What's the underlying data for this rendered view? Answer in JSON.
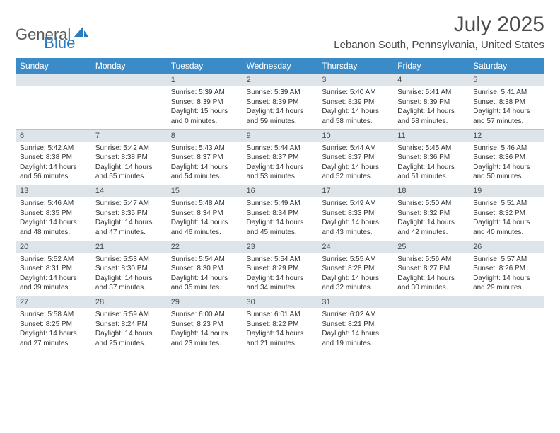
{
  "brand": {
    "general": "General",
    "blue": "Blue",
    "logo_color": "#2b7bbf",
    "text_gray": "#5a5a5a"
  },
  "header": {
    "month_title": "July 2025",
    "location": "Lebanon South, Pennsylvania, United States"
  },
  "colors": {
    "header_bg": "#3b8bc9",
    "daynum_bg": "#dde4ea",
    "daynum_border": "#b8c2cc",
    "text": "#333333"
  },
  "day_labels": [
    "Sunday",
    "Monday",
    "Tuesday",
    "Wednesday",
    "Thursday",
    "Friday",
    "Saturday"
  ],
  "weeks": [
    {
      "nums": [
        "",
        "",
        "1",
        "2",
        "3",
        "4",
        "5"
      ],
      "cells": [
        null,
        null,
        {
          "sunrise": "Sunrise: 5:39 AM",
          "sunset": "Sunset: 8:39 PM",
          "day1": "Daylight: 15 hours",
          "day2": "and 0 minutes."
        },
        {
          "sunrise": "Sunrise: 5:39 AM",
          "sunset": "Sunset: 8:39 PM",
          "day1": "Daylight: 14 hours",
          "day2": "and 59 minutes."
        },
        {
          "sunrise": "Sunrise: 5:40 AM",
          "sunset": "Sunset: 8:39 PM",
          "day1": "Daylight: 14 hours",
          "day2": "and 58 minutes."
        },
        {
          "sunrise": "Sunrise: 5:41 AM",
          "sunset": "Sunset: 8:39 PM",
          "day1": "Daylight: 14 hours",
          "day2": "and 58 minutes."
        },
        {
          "sunrise": "Sunrise: 5:41 AM",
          "sunset": "Sunset: 8:38 PM",
          "day1": "Daylight: 14 hours",
          "day2": "and 57 minutes."
        }
      ]
    },
    {
      "nums": [
        "6",
        "7",
        "8",
        "9",
        "10",
        "11",
        "12"
      ],
      "cells": [
        {
          "sunrise": "Sunrise: 5:42 AM",
          "sunset": "Sunset: 8:38 PM",
          "day1": "Daylight: 14 hours",
          "day2": "and 56 minutes."
        },
        {
          "sunrise": "Sunrise: 5:42 AM",
          "sunset": "Sunset: 8:38 PM",
          "day1": "Daylight: 14 hours",
          "day2": "and 55 minutes."
        },
        {
          "sunrise": "Sunrise: 5:43 AM",
          "sunset": "Sunset: 8:37 PM",
          "day1": "Daylight: 14 hours",
          "day2": "and 54 minutes."
        },
        {
          "sunrise": "Sunrise: 5:44 AM",
          "sunset": "Sunset: 8:37 PM",
          "day1": "Daylight: 14 hours",
          "day2": "and 53 minutes."
        },
        {
          "sunrise": "Sunrise: 5:44 AM",
          "sunset": "Sunset: 8:37 PM",
          "day1": "Daylight: 14 hours",
          "day2": "and 52 minutes."
        },
        {
          "sunrise": "Sunrise: 5:45 AM",
          "sunset": "Sunset: 8:36 PM",
          "day1": "Daylight: 14 hours",
          "day2": "and 51 minutes."
        },
        {
          "sunrise": "Sunrise: 5:46 AM",
          "sunset": "Sunset: 8:36 PM",
          "day1": "Daylight: 14 hours",
          "day2": "and 50 minutes."
        }
      ]
    },
    {
      "nums": [
        "13",
        "14",
        "15",
        "16",
        "17",
        "18",
        "19"
      ],
      "cells": [
        {
          "sunrise": "Sunrise: 5:46 AM",
          "sunset": "Sunset: 8:35 PM",
          "day1": "Daylight: 14 hours",
          "day2": "and 48 minutes."
        },
        {
          "sunrise": "Sunrise: 5:47 AM",
          "sunset": "Sunset: 8:35 PM",
          "day1": "Daylight: 14 hours",
          "day2": "and 47 minutes."
        },
        {
          "sunrise": "Sunrise: 5:48 AM",
          "sunset": "Sunset: 8:34 PM",
          "day1": "Daylight: 14 hours",
          "day2": "and 46 minutes."
        },
        {
          "sunrise": "Sunrise: 5:49 AM",
          "sunset": "Sunset: 8:34 PM",
          "day1": "Daylight: 14 hours",
          "day2": "and 45 minutes."
        },
        {
          "sunrise": "Sunrise: 5:49 AM",
          "sunset": "Sunset: 8:33 PM",
          "day1": "Daylight: 14 hours",
          "day2": "and 43 minutes."
        },
        {
          "sunrise": "Sunrise: 5:50 AM",
          "sunset": "Sunset: 8:32 PM",
          "day1": "Daylight: 14 hours",
          "day2": "and 42 minutes."
        },
        {
          "sunrise": "Sunrise: 5:51 AM",
          "sunset": "Sunset: 8:32 PM",
          "day1": "Daylight: 14 hours",
          "day2": "and 40 minutes."
        }
      ]
    },
    {
      "nums": [
        "20",
        "21",
        "22",
        "23",
        "24",
        "25",
        "26"
      ],
      "cells": [
        {
          "sunrise": "Sunrise: 5:52 AM",
          "sunset": "Sunset: 8:31 PM",
          "day1": "Daylight: 14 hours",
          "day2": "and 39 minutes."
        },
        {
          "sunrise": "Sunrise: 5:53 AM",
          "sunset": "Sunset: 8:30 PM",
          "day1": "Daylight: 14 hours",
          "day2": "and 37 minutes."
        },
        {
          "sunrise": "Sunrise: 5:54 AM",
          "sunset": "Sunset: 8:30 PM",
          "day1": "Daylight: 14 hours",
          "day2": "and 35 minutes."
        },
        {
          "sunrise": "Sunrise: 5:54 AM",
          "sunset": "Sunset: 8:29 PM",
          "day1": "Daylight: 14 hours",
          "day2": "and 34 minutes."
        },
        {
          "sunrise": "Sunrise: 5:55 AM",
          "sunset": "Sunset: 8:28 PM",
          "day1": "Daylight: 14 hours",
          "day2": "and 32 minutes."
        },
        {
          "sunrise": "Sunrise: 5:56 AM",
          "sunset": "Sunset: 8:27 PM",
          "day1": "Daylight: 14 hours",
          "day2": "and 30 minutes."
        },
        {
          "sunrise": "Sunrise: 5:57 AM",
          "sunset": "Sunset: 8:26 PM",
          "day1": "Daylight: 14 hours",
          "day2": "and 29 minutes."
        }
      ]
    },
    {
      "nums": [
        "27",
        "28",
        "29",
        "30",
        "31",
        "",
        ""
      ],
      "cells": [
        {
          "sunrise": "Sunrise: 5:58 AM",
          "sunset": "Sunset: 8:25 PM",
          "day1": "Daylight: 14 hours",
          "day2": "and 27 minutes."
        },
        {
          "sunrise": "Sunrise: 5:59 AM",
          "sunset": "Sunset: 8:24 PM",
          "day1": "Daylight: 14 hours",
          "day2": "and 25 minutes."
        },
        {
          "sunrise": "Sunrise: 6:00 AM",
          "sunset": "Sunset: 8:23 PM",
          "day1": "Daylight: 14 hours",
          "day2": "and 23 minutes."
        },
        {
          "sunrise": "Sunrise: 6:01 AM",
          "sunset": "Sunset: 8:22 PM",
          "day1": "Daylight: 14 hours",
          "day2": "and 21 minutes."
        },
        {
          "sunrise": "Sunrise: 6:02 AM",
          "sunset": "Sunset: 8:21 PM",
          "day1": "Daylight: 14 hours",
          "day2": "and 19 minutes."
        },
        null,
        null
      ]
    }
  ]
}
